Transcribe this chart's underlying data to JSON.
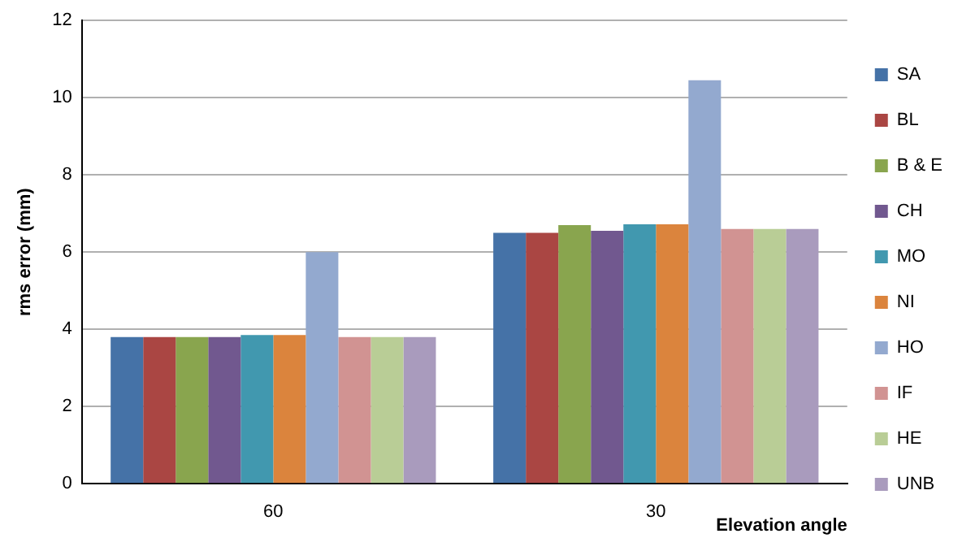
{
  "chart_data": {
    "type": "bar",
    "categories": [
      "60",
      "30"
    ],
    "ylabel": "rms error (mm)",
    "xlabel": "Elevation angle",
    "series": [
      {
        "name": "SA",
        "color": "#4572a7",
        "values": [
          3.8,
          6.5
        ]
      },
      {
        "name": "BL",
        "color": "#aa4643",
        "values": [
          3.8,
          6.5
        ]
      },
      {
        "name": "B & E",
        "color": "#89a54e",
        "values": [
          3.8,
          6.7
        ]
      },
      {
        "name": "CH",
        "color": "#71588f",
        "values": [
          3.8,
          6.55
        ]
      },
      {
        "name": "MO",
        "color": "#4198af",
        "values": [
          3.85,
          6.72
        ]
      },
      {
        "name": "NI",
        "color": "#db843d",
        "values": [
          3.85,
          6.72
        ]
      },
      {
        "name": "HO",
        "color": "#93a9cf",
        "values": [
          6.0,
          10.45
        ]
      },
      {
        "name": "IF",
        "color": "#d19392",
        "values": [
          3.8,
          6.6
        ]
      },
      {
        "name": "HE",
        "color": "#b9cd96",
        "values": [
          3.8,
          6.6
        ]
      },
      {
        "name": "UNB",
        "color": "#a99bbd",
        "values": [
          3.8,
          6.6
        ]
      }
    ],
    "ylim": [
      0,
      12
    ],
    "yticks": [
      0,
      2,
      4,
      6,
      8,
      10,
      12
    ],
    "grid": "y",
    "legend": "right"
  }
}
